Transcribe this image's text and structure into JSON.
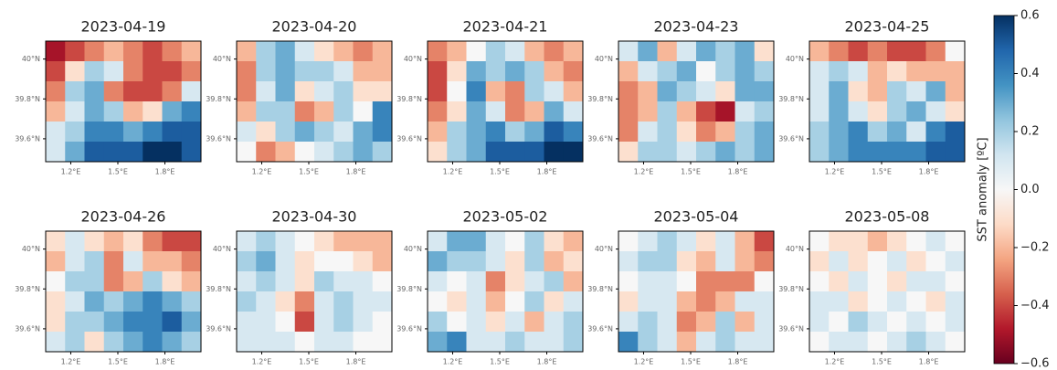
{
  "chart_data": {
    "type": "heatmap",
    "xlim": [
      1.04,
      2.03
    ],
    "ylim": [
      39.485,
      40.09
    ],
    "xticks": [
      {
        "value": 1.2,
        "label": "1.2°E"
      },
      {
        "value": 1.5,
        "label": "1.5°E"
      },
      {
        "value": 1.8,
        "label": "1.8°E"
      }
    ],
    "yticks": [
      {
        "value": 40,
        "label": "40°N"
      },
      {
        "value": 39.8,
        "label": "39.8°N"
      },
      {
        "value": 39.6,
        "label": "39.6°N"
      }
    ],
    "colormap": [
      "#67001f",
      "#b2182b",
      "#d6604d",
      "#f4a582",
      "#fddbc7",
      "#f7f7f7",
      "#d1e5f0",
      "#92c5de",
      "#4393c3",
      "#2166ac",
      "#053061"
    ],
    "colorbar": {
      "label": "SST anomaly [ºC]",
      "lim": [
        -0.6,
        0.6
      ],
      "ticks": [
        {
          "value": -0.6,
          "label": "−0.6"
        },
        {
          "value": -0.4,
          "label": "−0.4"
        },
        {
          "value": -0.2,
          "label": "−0.2"
        },
        {
          "value": 0,
          "label": "0.0"
        },
        0.2,
        0.4,
        0.6
      ]
    },
    "panels": [
      {
        "title": "2023-04-19",
        "values": [
          [
            -0.5,
            -0.4,
            -0.3,
            -0.2,
            -0.3,
            -0.4,
            -0.3,
            -0.2
          ],
          [
            -0.4,
            -0.1,
            0.2,
            0.1,
            -0.3,
            -0.4,
            -0.4,
            -0.3
          ],
          [
            -0.3,
            0.2,
            0.3,
            -0.3,
            -0.4,
            -0.4,
            -0.3,
            0.1
          ],
          [
            -0.2,
            0.1,
            0.3,
            0.2,
            -0.2,
            -0.1,
            0.3,
            0.4
          ],
          [
            0.1,
            0.2,
            0.4,
            0.4,
            0.3,
            0.4,
            0.5,
            0.5
          ],
          [
            0.1,
            0.3,
            0.5,
            0.5,
            0.5,
            0.6,
            0.6,
            0.5
          ]
        ]
      },
      {
        "title": "2023-04-20",
        "values": [
          [
            -0.2,
            0.2,
            0.3,
            0.1,
            -0.1,
            -0.2,
            -0.3,
            -0.2
          ],
          [
            -0.3,
            0.2,
            0.3,
            0.2,
            0.2,
            0.1,
            -0.2,
            -0.2
          ],
          [
            -0.3,
            0.1,
            0.3,
            -0.1,
            0.1,
            0.2,
            -0.1,
            -0.1
          ],
          [
            -0.2,
            0.2,
            0.2,
            -0.3,
            -0.2,
            0.2,
            0,
            0.4
          ],
          [
            0.1,
            -0.1,
            0.2,
            0.3,
            0.2,
            0.1,
            0.3,
            0.4
          ],
          [
            0,
            -0.3,
            -0.2,
            0,
            0.1,
            0.2,
            0.3,
            0.2
          ]
        ]
      },
      {
        "title": "2023-04-21",
        "values": [
          [
            -0.3,
            -0.2,
            0,
            0.2,
            0.1,
            -0.2,
            -0.3,
            -0.2
          ],
          [
            -0.4,
            -0.1,
            0.3,
            0.2,
            0.3,
            0.2,
            -0.2,
            -0.3
          ],
          [
            -0.4,
            0,
            0.4,
            -0.2,
            -0.3,
            0.2,
            0.1,
            -0.2
          ],
          [
            -0.3,
            -0.1,
            0.3,
            0.1,
            -0.3,
            -0.2,
            0.3,
            0.1
          ],
          [
            -0.2,
            0.2,
            0.3,
            0.4,
            0.2,
            0.3,
            0.5,
            0.4
          ],
          [
            -0.1,
            0.2,
            0.3,
            0.5,
            0.5,
            0.5,
            0.6,
            0.6
          ]
        ]
      },
      {
        "title": "2023-04-23",
        "values": [
          [
            0.1,
            0.3,
            -0.2,
            0.1,
            0.3,
            0.2,
            0.3,
            -0.1
          ],
          [
            -0.2,
            0.1,
            0.2,
            0.3,
            0,
            0.2,
            0.3,
            0.2
          ],
          [
            -0.3,
            -0.2,
            0.3,
            0.2,
            0.1,
            -0.1,
            0.3,
            0.3
          ],
          [
            -0.3,
            -0.2,
            0.2,
            -0.2,
            -0.4,
            -0.5,
            0.1,
            0.2
          ],
          [
            -0.3,
            0.1,
            0.2,
            -0.1,
            -0.3,
            -0.2,
            0.2,
            0.3
          ],
          [
            -0.1,
            0.2,
            0.2,
            0.1,
            0.2,
            0.3,
            0.2,
            0.3
          ]
        ]
      },
      {
        "title": "2023-04-25",
        "values": [
          [
            -0.2,
            -0.3,
            -0.4,
            -0.3,
            -0.4,
            -0.4,
            -0.3,
            0
          ],
          [
            0.1,
            0.2,
            0.1,
            -0.2,
            -0.1,
            -0.2,
            -0.2,
            -0.2
          ],
          [
            0.1,
            0.3,
            -0.1,
            -0.2,
            0.2,
            0.1,
            0.3,
            -0.2
          ],
          [
            0.1,
            0.3,
            0.1,
            -0.1,
            0.2,
            0.3,
            0.1,
            -0.1
          ],
          [
            0.2,
            0.3,
            0.4,
            0.2,
            0.3,
            0.1,
            0.4,
            0.5
          ],
          [
            0.2,
            0.3,
            0.4,
            0.4,
            0.4,
            0.4,
            0.5,
            0.5
          ]
        ]
      },
      {
        "title": "2023-04-26",
        "values": [
          [
            -0.1,
            0.1,
            -0.1,
            -0.2,
            -0.1,
            -0.3,
            -0.4,
            -0.4
          ],
          [
            -0.2,
            0.1,
            0.2,
            -0.3,
            0.1,
            -0.2,
            -0.2,
            -0.3
          ],
          [
            0,
            0.2,
            0.2,
            -0.3,
            -0.2,
            0.2,
            -0.1,
            -0.2
          ],
          [
            -0.1,
            0.1,
            0.3,
            0.2,
            0.3,
            0.4,
            0.3,
            0.2
          ],
          [
            -0.1,
            0.2,
            0.2,
            0.3,
            0.4,
            0.4,
            0.5,
            0.3
          ],
          [
            0.1,
            0.2,
            -0.1,
            0.2,
            0.3,
            0.4,
            0.3,
            0.2
          ]
        ]
      },
      {
        "title": "2023-04-30",
        "values": [
          [
            0.1,
            0.2,
            0.1,
            0,
            -0.1,
            -0.2,
            -0.2,
            -0.2
          ],
          [
            0.2,
            0.3,
            0.1,
            -0.1,
            0,
            0,
            -0.1,
            -0.2
          ],
          [
            0.1,
            0.2,
            0.1,
            -0.1,
            0.2,
            0.1,
            0.1,
            0
          ],
          [
            0.2,
            0.1,
            -0.1,
            -0.3,
            0.1,
            0.2,
            0.1,
            0.1
          ],
          [
            0.1,
            0.1,
            0,
            -0.4,
            0.1,
            0.2,
            0.1,
            0
          ],
          [
            0.1,
            0.1,
            0.1,
            0,
            0.1,
            0.1,
            0,
            0
          ]
        ]
      },
      {
        "title": "2023-05-02",
        "values": [
          [
            0.1,
            0.3,
            0.3,
            0.1,
            0,
            0.2,
            -0.1,
            -0.2
          ],
          [
            0.3,
            0.2,
            0.2,
            0.1,
            -0.1,
            0.2,
            -0.2,
            -0.1
          ],
          [
            0.1,
            0,
            0.1,
            -0.3,
            -0.1,
            0.1,
            0.2,
            -0.2
          ],
          [
            0,
            -0.1,
            0.1,
            -0.2,
            0,
            0.2,
            -0.1,
            0.1
          ],
          [
            0.2,
            0,
            0.1,
            -0.1,
            0.1,
            -0.2,
            0.1,
            0.2
          ],
          [
            0.3,
            0.4,
            0.1,
            0.1,
            0.2,
            0.1,
            0.1,
            0.2
          ]
        ]
      },
      {
        "title": "2023-05-04",
        "values": [
          [
            0,
            0.1,
            0.2,
            0.1,
            -0.1,
            0.1,
            -0.2,
            -0.4
          ],
          [
            0.1,
            0.2,
            0.2,
            -0.1,
            -0.2,
            0.1,
            -0.2,
            -0.3
          ],
          [
            0,
            0.1,
            0.1,
            0,
            -0.3,
            -0.3,
            -0.3,
            0
          ],
          [
            -0.1,
            0.1,
            0.1,
            -0.2,
            -0.3,
            -0.2,
            0.1,
            0.1
          ],
          [
            0.1,
            0.2,
            0.1,
            -0.3,
            -0.2,
            0.2,
            -0.2,
            0.1
          ],
          [
            0.4,
            0.2,
            0.1,
            -0.2,
            0.1,
            0.2,
            0.1,
            0.1
          ]
        ]
      },
      {
        "title": "2023-05-08",
        "values": [
          [
            0,
            -0.1,
            -0.1,
            -0.2,
            -0.1,
            0,
            0.1,
            0
          ],
          [
            -0.1,
            0.1,
            -0.1,
            0,
            0.1,
            -0.1,
            0,
            0.1
          ],
          [
            0,
            -0.1,
            0.1,
            0,
            -0.1,
            0.1,
            0.1,
            0
          ],
          [
            0.1,
            0.1,
            -0.1,
            0,
            0.1,
            0,
            -0.1,
            0.1
          ],
          [
            0.1,
            0,
            0.2,
            0.1,
            0,
            0.1,
            0,
            0.1
          ],
          [
            0,
            0.1,
            0.1,
            0,
            0.1,
            0.2,
            0.1,
            0
          ]
        ]
      }
    ]
  }
}
